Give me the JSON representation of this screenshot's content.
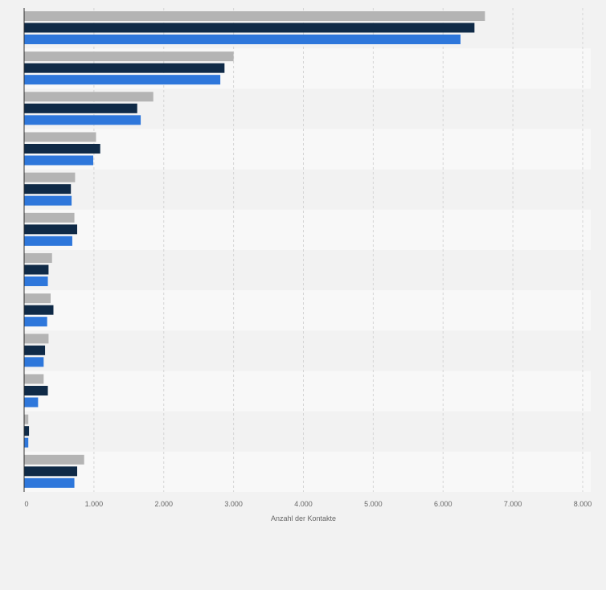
{
  "chart_data": {
    "type": "bar",
    "orientation": "horizontal",
    "categories": [
      "",
      "",
      "",
      "",
      "",
      "",
      "",
      "",
      "",
      "",
      "",
      ""
    ],
    "series": [
      {
        "color": "#b4b4b4",
        "values": [
          6600,
          3000,
          1850,
          1030,
          730,
          720,
          400,
          380,
          350,
          280,
          60,
          860
        ]
      },
      {
        "color": "#0f2a47",
        "values": [
          6450,
          2870,
          1620,
          1090,
          670,
          760,
          350,
          420,
          300,
          340,
          70,
          760
        ]
      },
      {
        "color": "#2e77db",
        "values": [
          6250,
          2810,
          1670,
          990,
          680,
          690,
          340,
          330,
          280,
          200,
          60,
          720
        ]
      }
    ],
    "xlim": [
      0,
      8000
    ],
    "xticks": [
      0,
      1000,
      2000,
      3000,
      4000,
      5000,
      6000,
      7000,
      8000
    ],
    "xtick_labels": [
      "0",
      "1.000",
      "2.000",
      "3.000",
      "4.000",
      "5.000",
      "6.000",
      "7.000",
      "8.000"
    ],
    "xlabel": "Anzahl der Kontakte",
    "grid": true
  },
  "colors": {
    "background": "#f2f2f2",
    "band_even": "#f2f2f2",
    "band_odd": "#f8f8f8",
    "gridline": "#d4d4d4",
    "axis": "#333333",
    "tick_text": "#666666"
  }
}
